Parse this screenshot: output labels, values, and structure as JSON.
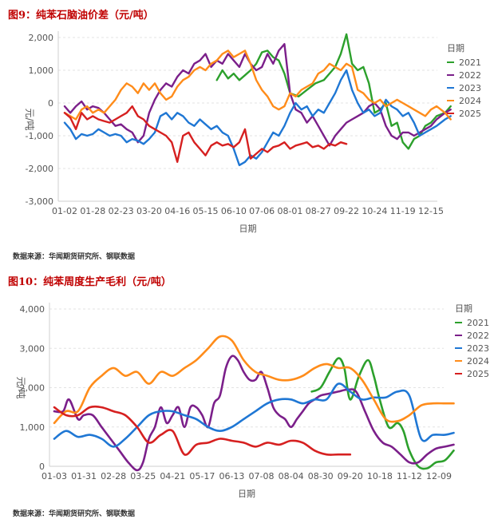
{
  "figures": [
    {
      "title": "图9：纯苯石脑油价差（元/吨）",
      "source": "数据来源：华闻期货研究所、钢联数据"
    },
    {
      "title": "图10：纯苯周度生产毛利（元/吨）",
      "source": "数据来源：华闻期货研究所、钢联数据"
    }
  ],
  "chart_data": [
    {
      "type": "line",
      "title": "纯苯石脑油价差（元/吨）",
      "xlabel": "日期",
      "ylabel": "元/吨",
      "ylim": [
        -3000,
        2000
      ],
      "yticks": [
        2000,
        1000,
        0,
        -1000,
        -2000,
        -3000
      ],
      "ytick_labels": [
        "2,000",
        "1,000",
        "0",
        "-1,000",
        "-2,000",
        "-3,000"
      ],
      "xtick_labels": [
        "01-02",
        "01-28",
        "02-23",
        "03-20",
        "04-16",
        "05-15",
        "06-10",
        "07-06",
        "08-01",
        "08-27",
        "09-22",
        "10-24",
        "11-19",
        "12-15"
      ],
      "grid": true,
      "legend_title": "日期",
      "legend_position": "right",
      "series": [
        {
          "name": "2021",
          "color": "#2ca02c",
          "x": [
            5.4,
            5.6,
            5.8,
            6.0,
            6.2,
            6.4,
            6.6,
            6.8,
            7.0,
            7.2,
            7.4,
            7.6,
            7.8,
            8.0,
            8.3,
            8.6,
            8.9,
            9.2,
            9.4,
            9.6,
            9.8,
            10.0,
            10.2,
            10.4,
            10.6,
            10.8,
            11.0,
            11.2,
            11.4,
            11.6,
            11.8,
            12.0,
            12.2,
            12.4,
            12.6,
            12.8,
            13.0,
            13.2,
            13.5,
            13.7
          ],
          "values": [
            700,
            1000,
            750,
            900,
            700,
            850,
            1000,
            1200,
            1550,
            1600,
            1400,
            1300,
            900,
            300,
            200,
            400,
            600,
            700,
            900,
            1100,
            1500,
            2100,
            1200,
            1000,
            1100,
            600,
            -300,
            -200,
            0,
            -700,
            -600,
            -1200,
            -1400,
            -1100,
            -1000,
            -700,
            -600,
            -400,
            -300,
            -100
          ]
        },
        {
          "name": "2022",
          "color": "#7b1f8a",
          "x": [
            0.0,
            0.2,
            0.4,
            0.6,
            0.8,
            1.0,
            1.2,
            1.4,
            1.6,
            1.8,
            2.0,
            2.2,
            2.4,
            2.6,
            2.8,
            3.0,
            3.2,
            3.4,
            3.6,
            3.8,
            4.0,
            4.2,
            4.4,
            4.6,
            4.8,
            5.0,
            5.2,
            5.4,
            5.6,
            5.8,
            6.0,
            6.2,
            6.4,
            6.6,
            6.8,
            7.0,
            7.2,
            7.4,
            7.6,
            7.8,
            8.0,
            8.2,
            8.4,
            8.6,
            8.8,
            9.0,
            9.2,
            9.4,
            9.6,
            9.8,
            10.0,
            10.2,
            10.4,
            10.6,
            10.8,
            11.0,
            11.2,
            11.4,
            11.6,
            11.8,
            12.0,
            12.2,
            12.4,
            12.6,
            12.8,
            13.0,
            13.2,
            13.5,
            13.7
          ],
          "values": [
            -100,
            -300,
            -100,
            50,
            -200,
            -100,
            -150,
            -300,
            -500,
            -700,
            -650,
            -800,
            -900,
            -1200,
            -1000,
            -300,
            100,
            400,
            600,
            500,
            800,
            1000,
            900,
            1200,
            1300,
            1500,
            1100,
            1300,
            1200,
            1500,
            1300,
            1100,
            1500,
            1200,
            1000,
            1100,
            1500,
            1200,
            1600,
            1800,
            300,
            -200,
            -300,
            -600,
            -400,
            -700,
            -1000,
            -1300,
            -1000,
            -800,
            -600,
            -500,
            -400,
            -300,
            -100,
            0,
            -200,
            -700,
            -1000,
            -1100,
            -900,
            -900,
            -1000,
            -900,
            -800,
            -700,
            -500,
            -300,
            -200
          ]
        },
        {
          "name": "2023",
          "color": "#1f77d4",
          "x": [
            0.0,
            0.2,
            0.4,
            0.6,
            0.8,
            1.0,
            1.2,
            1.4,
            1.6,
            1.8,
            2.0,
            2.2,
            2.4,
            2.6,
            2.8,
            3.0,
            3.2,
            3.4,
            3.6,
            3.8,
            4.0,
            4.2,
            4.4,
            4.6,
            4.8,
            5.0,
            5.2,
            5.4,
            5.6,
            5.8,
            6.0,
            6.2,
            6.4,
            6.6,
            6.8,
            7.0,
            7.2,
            7.4,
            7.6,
            7.8,
            8.0,
            8.2,
            8.4,
            8.6,
            8.8,
            9.0,
            9.2,
            9.4,
            9.6,
            9.8,
            10.0,
            10.2,
            10.4,
            10.6,
            10.8,
            11.0,
            11.2,
            11.4,
            11.6,
            11.8,
            12.0,
            12.2,
            12.4,
            12.6,
            12.8,
            13.0,
            13.2,
            13.5,
            13.7
          ],
          "values": [
            -600,
            -800,
            -1100,
            -950,
            -1000,
            -950,
            -800,
            -900,
            -1000,
            -950,
            -1000,
            -1200,
            -1100,
            -1150,
            -1250,
            -1100,
            -900,
            -400,
            -300,
            -500,
            -300,
            -400,
            -600,
            -700,
            -500,
            -650,
            -800,
            -700,
            -900,
            -1000,
            -1400,
            -1900,
            -1800,
            -1600,
            -1700,
            -1500,
            -1200,
            -900,
            -1000,
            -700,
            -300,
            0,
            -200,
            -100,
            -400,
            -200,
            -300,
            0,
            300,
            700,
            1000,
            400,
            0,
            -300,
            -200,
            -400,
            -300,
            100,
            -100,
            -200,
            -400,
            -300,
            -600,
            -1000,
            -900,
            -800,
            -700,
            -500,
            -400
          ]
        },
        {
          "name": "2024",
          "color": "#ff8c1a",
          "x": [
            0.0,
            0.2,
            0.4,
            0.6,
            0.8,
            1.0,
            1.2,
            1.4,
            1.6,
            1.8,
            2.0,
            2.2,
            2.4,
            2.6,
            2.8,
            3.0,
            3.2,
            3.4,
            3.6,
            3.8,
            4.0,
            4.2,
            4.4,
            4.6,
            4.8,
            5.0,
            5.2,
            5.4,
            5.6,
            5.8,
            6.0,
            6.2,
            6.4,
            6.6,
            6.8,
            7.0,
            7.2,
            7.4,
            7.6,
            7.8,
            8.0,
            8.2,
            8.4,
            8.6,
            8.8,
            9.0,
            9.2,
            9.4,
            9.6,
            9.8,
            10.0,
            10.2,
            10.4,
            10.6,
            10.8,
            11.0,
            11.2,
            11.4,
            11.6,
            11.8,
            12.0,
            12.2,
            12.4,
            12.6,
            12.8,
            13.0,
            13.2,
            13.5,
            13.7
          ],
          "values": [
            -300,
            -400,
            -500,
            -200,
            -100,
            -300,
            -200,
            -300,
            -100,
            100,
            400,
            600,
            500,
            300,
            600,
            400,
            600,
            300,
            100,
            200,
            500,
            700,
            800,
            1000,
            1100,
            1000,
            1200,
            1300,
            1500,
            1600,
            1400,
            1500,
            1600,
            1200,
            700,
            400,
            200,
            -100,
            -200,
            -100,
            300,
            200,
            400,
            500,
            600,
            900,
            1000,
            1200,
            1100,
            1000,
            1200,
            1100,
            400,
            300,
            100,
            0,
            100,
            -100,
            0,
            100,
            0,
            -100,
            -200,
            -300,
            -400,
            -200,
            -100,
            -300,
            -500
          ]
        },
        {
          "name": "2025",
          "color": "#d62020",
          "x": [
            0.0,
            0.2,
            0.4,
            0.6,
            0.8,
            1.0,
            1.2,
            1.4,
            1.6,
            1.8,
            2.0,
            2.2,
            2.4,
            2.6,
            2.8,
            3.0,
            3.2,
            3.4,
            3.6,
            3.8,
            4.0,
            4.2,
            4.4,
            4.6,
            4.8,
            5.0,
            5.2,
            5.4,
            5.6,
            5.8,
            6.0,
            6.2,
            6.4,
            6.6,
            6.8,
            7.0,
            7.2,
            7.4,
            7.6,
            7.8,
            8.0,
            8.2,
            8.4,
            8.6,
            8.8,
            9.0,
            9.2,
            9.4,
            9.6,
            9.8,
            10.0
          ],
          "values": [
            -300,
            -450,
            -800,
            -300,
            -500,
            -400,
            -500,
            -550,
            -600,
            -500,
            -400,
            -300,
            -100,
            -400,
            -500,
            -700,
            -800,
            -900,
            -1000,
            -1200,
            -1800,
            -1000,
            -900,
            -1200,
            -1400,
            -1600,
            -1300,
            -1200,
            -1300,
            -1250,
            -1350,
            -1200,
            -800,
            -1700,
            -1550,
            -1400,
            -1500,
            -1350,
            -1300,
            -1200,
            -1400,
            -1300,
            -1250,
            -1200,
            -1350,
            -1300,
            -1400,
            -1250,
            -1300,
            -1200,
            -1250
          ]
        }
      ]
    },
    {
      "type": "line",
      "title": "纯苯周度生产毛利（元/吨）",
      "xlabel": "日期",
      "ylabel": "元/吨",
      "ylim": [
        0,
        4000
      ],
      "yticks": [
        4000,
        3000,
        2000,
        1000,
        0
      ],
      "ytick_labels": [
        "4,000",
        "3,000",
        "2,000",
        "1,000",
        "0"
      ],
      "xtick_labels": [
        "01-03",
        "01-31",
        "02-28",
        "03-25",
        "04-21",
        "05-17",
        "06-13",
        "07-08",
        "08-04",
        "08-30",
        "09-20",
        "10-18",
        "11-12",
        "12-09"
      ],
      "grid": true,
      "legend_title": "日期",
      "legend_position": "right",
      "series": [
        {
          "name": "2021",
          "color": "#2ca02c",
          "x": [
            8.7,
            9.0,
            9.3,
            9.6,
            9.8,
            10.0,
            10.3,
            10.6,
            10.8,
            11.0,
            11.3,
            11.6,
            11.8,
            12.0,
            12.3,
            12.6,
            12.9,
            13.2,
            13.5
          ],
          "values": [
            1900,
            2000,
            2400,
            2750,
            2500,
            1700,
            2300,
            2700,
            2300,
            1700,
            1000,
            1100,
            900,
            400,
            0,
            -50,
            100,
            150,
            400
          ]
        },
        {
          "name": "2022",
          "color": "#7b1f8a",
          "x": [
            0.0,
            0.3,
            0.5,
            0.8,
            1.0,
            1.3,
            1.6,
            1.9,
            2.2,
            2.5,
            2.8,
            3.0,
            3.2,
            3.4,
            3.6,
            3.8,
            4.0,
            4.2,
            4.4,
            4.6,
            4.8,
            5.0,
            5.2,
            5.4,
            5.6,
            5.8,
            6.0,
            6.2,
            6.4,
            6.6,
            6.8,
            7.0,
            7.2,
            7.4,
            7.6,
            7.8,
            8.0,
            8.2,
            8.4,
            8.6,
            8.8,
            9.0,
            9.3,
            9.6,
            9.9,
            10.2,
            10.5,
            10.8,
            11.1,
            11.4,
            11.7,
            12.0,
            12.3,
            12.6,
            12.9,
            13.2,
            13.5
          ],
          "values": [
            1400,
            1400,
            1700,
            1200,
            1300,
            1300,
            1000,
            700,
            400,
            100,
            -100,
            100,
            700,
            1000,
            1500,
            1100,
            1300,
            1500,
            1000,
            1500,
            1500,
            1300,
            1000,
            1600,
            1800,
            2500,
            2800,
            2700,
            2400,
            2200,
            2200,
            2400,
            2000,
            1500,
            1300,
            1200,
            1000,
            1200,
            1400,
            1600,
            1700,
            1800,
            1850,
            1900,
            1950,
            1900,
            1400,
            900,
            600,
            500,
            300,
            100,
            100,
            300,
            450,
            500,
            550
          ]
        },
        {
          "name": "2023",
          "color": "#1f77d4",
          "x": [
            0.0,
            0.4,
            0.8,
            1.2,
            1.6,
            2.0,
            2.4,
            2.8,
            3.2,
            3.6,
            4.0,
            4.4,
            4.8,
            5.2,
            5.6,
            6.0,
            6.4,
            6.8,
            7.2,
            7.6,
            8.0,
            8.4,
            8.8,
            9.2,
            9.6,
            10.0,
            10.4,
            10.8,
            11.2,
            11.6,
            12.0,
            12.4,
            12.8,
            13.2,
            13.5
          ],
          "values": [
            700,
            900,
            750,
            800,
            700,
            500,
            700,
            1000,
            1300,
            1400,
            1400,
            1300,
            1200,
            1000,
            900,
            1000,
            1200,
            1400,
            1600,
            1700,
            1700,
            1600,
            1700,
            1700,
            2100,
            1900,
            1700,
            1750,
            1750,
            1900,
            1800,
            700,
            800,
            800,
            850
          ]
        },
        {
          "name": "2024",
          "color": "#ff8c1a",
          "x": [
            0.0,
            0.4,
            0.8,
            1.2,
            1.6,
            2.0,
            2.4,
            2.8,
            3.2,
            3.6,
            4.0,
            4.4,
            4.8,
            5.2,
            5.6,
            6.0,
            6.4,
            6.8,
            7.2,
            7.6,
            8.0,
            8.4,
            8.8,
            9.2,
            9.6,
            10.0,
            10.4,
            10.8,
            11.2,
            11.6,
            12.0,
            12.4,
            12.8,
            13.2,
            13.5
          ],
          "values": [
            1100,
            1400,
            1400,
            2000,
            2300,
            2500,
            2300,
            2400,
            2100,
            2400,
            2300,
            2500,
            2700,
            3000,
            3300,
            3200,
            2700,
            2400,
            2300,
            2200,
            2200,
            2300,
            2500,
            2600,
            2500,
            2500,
            2200,
            1700,
            1200,
            1150,
            1300,
            1550,
            1600,
            1600,
            1600
          ]
        },
        {
          "name": "2025",
          "color": "#d62020",
          "x": [
            0.0,
            0.4,
            0.8,
            1.2,
            1.6,
            2.0,
            2.4,
            2.8,
            3.2,
            3.6,
            4.0,
            4.4,
            4.8,
            5.2,
            5.6,
            6.0,
            6.4,
            6.8,
            7.2,
            7.6,
            8.0,
            8.4,
            8.8,
            9.2,
            9.6,
            10.0
          ],
          "values": [
            1500,
            1300,
            1300,
            1500,
            1500,
            1400,
            1300,
            1000,
            600,
            800,
            900,
            300,
            550,
            600,
            700,
            650,
            600,
            500,
            600,
            550,
            650,
            600,
            400,
            300,
            300,
            300
          ]
        }
      ]
    }
  ]
}
